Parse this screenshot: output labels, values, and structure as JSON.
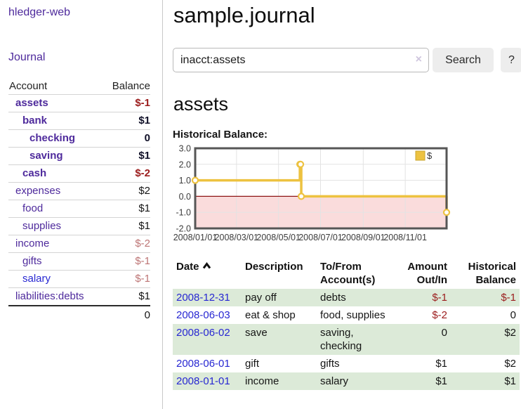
{
  "app": {
    "brand": "hledger-web",
    "nav_journal": "Journal"
  },
  "header": {
    "title": "sample.journal"
  },
  "search": {
    "value": "inacct:assets",
    "clear_icon": "×",
    "button": "Search",
    "help_button": "?"
  },
  "sidebar": {
    "header": {
      "account": "Account",
      "balance": "Balance"
    },
    "accounts": [
      {
        "name": "assets",
        "depth": 1,
        "bold": true,
        "balance": "$-1",
        "balance_style": "neg-strong"
      },
      {
        "name": "bank",
        "depth": 2,
        "bold": true,
        "balance": "$1",
        "balance_style": "normal-strong"
      },
      {
        "name": "checking",
        "depth": 3,
        "bold": true,
        "balance": "0",
        "balance_style": "normal-strong"
      },
      {
        "name": "saving",
        "depth": 3,
        "bold": true,
        "balance": "$1",
        "balance_style": "normal-strong"
      },
      {
        "name": "cash",
        "depth": 2,
        "bold": true,
        "balance": "$-2",
        "balance_style": "neg-strong"
      },
      {
        "name": "expenses",
        "depth": 1,
        "bold": false,
        "balance": "$2",
        "balance_style": "normal"
      },
      {
        "name": "food",
        "depth": 2,
        "bold": false,
        "balance": "$1",
        "balance_style": "normal"
      },
      {
        "name": "supplies",
        "depth": 2,
        "bold": false,
        "balance": "$1",
        "balance_style": "normal"
      },
      {
        "name": "income",
        "depth": 1,
        "bold": false,
        "balance": "$-2",
        "balance_style": "neg-soft"
      },
      {
        "name": "gifts",
        "depth": 2,
        "bold": false,
        "balance": "$-1",
        "balance_style": "neg-soft"
      },
      {
        "name": "salary",
        "depth": 2,
        "bold": false,
        "link_color": "blue",
        "balance": "$-1",
        "balance_style": "neg-soft"
      },
      {
        "name": "liabilities:debts",
        "depth": 1,
        "bold": false,
        "balance": "$1",
        "balance_style": "normal"
      }
    ],
    "total": "0"
  },
  "account_page": {
    "title": "assets",
    "chart_label": "Historical Balance:"
  },
  "chart_data": {
    "type": "line",
    "step": true,
    "legend": [
      {
        "label": "$",
        "color": "#edc240"
      }
    ],
    "legend_position": "top-right",
    "grid": true,
    "x_start": "2008-01-01",
    "x_end": "2008-12-31",
    "x_ticks": [
      {
        "label": "2008/01/01",
        "date": "2008-01-01"
      },
      {
        "label": "2008/03/01",
        "date": "2008-03-01"
      },
      {
        "label": "2008/05/01",
        "date": "2008-05-01"
      },
      {
        "label": "2008/07/01",
        "date": "2008-07-01"
      },
      {
        "label": "2008/09/01",
        "date": "2008-09-01"
      },
      {
        "label": "2008/11/01",
        "date": "2008-11-01"
      }
    ],
    "y_ticks": [
      "3.0",
      "2.0",
      "1.0",
      "0.0",
      "-1.0",
      "-2.0"
    ],
    "ylim": [
      -2,
      3
    ],
    "negative_region_shaded": true,
    "series": [
      {
        "name": "$",
        "points": [
          {
            "date": "2008-01-01",
            "value": 1
          },
          {
            "date": "2008-06-01",
            "value": 2
          },
          {
            "date": "2008-06-02",
            "value": 2
          },
          {
            "date": "2008-06-03",
            "value": 0
          },
          {
            "date": "2008-12-31",
            "value": -1
          }
        ]
      }
    ]
  },
  "register": {
    "columns": [
      {
        "label": "Date",
        "sorted": "asc"
      },
      {
        "label": "Description"
      },
      {
        "label": "To/From Account(s)"
      },
      {
        "label": "Amount Out/In"
      },
      {
        "label": "Historical Balance"
      }
    ],
    "rows": [
      {
        "date": "2008-12-31",
        "description": "pay off",
        "accounts": "debts",
        "amount": "$-1",
        "balance": "$-1"
      },
      {
        "date": "2008-06-03",
        "description": "eat & shop",
        "accounts": "food, supplies",
        "amount": "$-2",
        "balance": "0"
      },
      {
        "date": "2008-06-02",
        "description": "save",
        "accounts": "saving, checking",
        "amount": "0",
        "balance": "$2"
      },
      {
        "date": "2008-06-01",
        "description": "gift",
        "accounts": "gifts",
        "amount": "$1",
        "balance": "$2"
      },
      {
        "date": "2008-01-01",
        "description": "income",
        "accounts": "salary",
        "amount": "$1",
        "balance": "$1"
      }
    ]
  },
  "colors": {
    "purple": "#4e2a9c",
    "blue": "#2727d2",
    "neg": "#9b1c1c",
    "neg-soft": "#bd7575",
    "row-green": "#dcead8",
    "gold": "#edc240",
    "pink": "#fadcdc",
    "zero-red": "#8e1717",
    "frame": "#565656",
    "gridline": "#e3e3e3"
  }
}
